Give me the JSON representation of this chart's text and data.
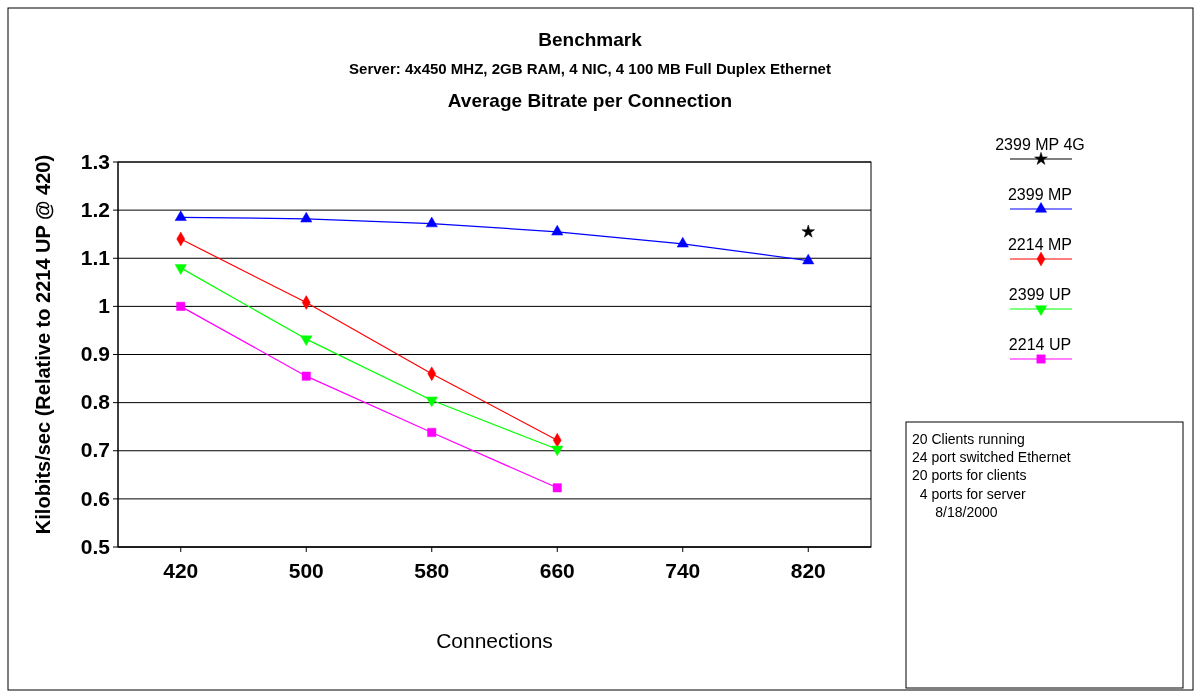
{
  "chart_data": {
    "type": "line",
    "title": "Benchmark",
    "subtitle": "Server: 4x450 MHZ, 2GB RAM, 4 NIC, 4 100 MB Full Duplex Ethernet",
    "annotations": [
      "Average Bitrate per Connection",
      "20 Clients running\n24 port switched Ethernet\n20 ports for clients\n  4 ports for server\n\n      8/18/2000"
    ],
    "xlabel": "Connections",
    "ylabel": "Kilobits/sec (Relative to 2214 UP @ 420)",
    "categories": [
      "420",
      "500",
      "580",
      "660",
      "740",
      "820"
    ],
    "ylim": [
      0.5,
      1.3
    ],
    "yticks": [
      0.5,
      0.6,
      0.7,
      0.8,
      0.9,
      1,
      1.1,
      1.2,
      1.3
    ],
    "grid": "y",
    "legend": "right",
    "series": [
      {
        "name": "2399 MP 4G",
        "color": "#000000",
        "marker": "star",
        "values": [
          null,
          null,
          null,
          null,
          null,
          1.155
        ]
      },
      {
        "name": "2399 MP",
        "color": "#0000ff",
        "marker": "triangle",
        "values": [
          1.185,
          1.182,
          1.172,
          1.155,
          1.13,
          1.095
        ]
      },
      {
        "name": "2214 MP",
        "color": "#ff0000",
        "marker": "diamond",
        "values": [
          1.14,
          1.008,
          0.86,
          0.722,
          null,
          null
        ]
      },
      {
        "name": "2399 UP",
        "color": "#00ff00",
        "marker": "triangle-down",
        "values": [
          1.08,
          0.932,
          0.805,
          0.703,
          null,
          null
        ]
      },
      {
        "name": "2214 UP",
        "color": "#ff00ff",
        "marker": "square",
        "values": [
          1.0,
          0.855,
          0.738,
          0.623,
          null,
          null
        ]
      }
    ]
  }
}
